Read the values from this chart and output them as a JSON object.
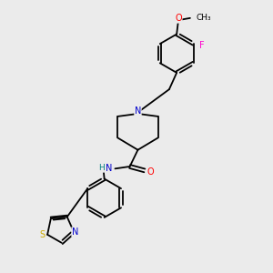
{
  "background_color": "#ebebeb",
  "bond_color": "#000000",
  "atom_colors": {
    "N": "#0000cc",
    "O": "#ff0000",
    "S": "#ccaa00",
    "F": "#ff00cc",
    "H": "#008080",
    "C": "#000000"
  },
  "font_size": 7.0
}
